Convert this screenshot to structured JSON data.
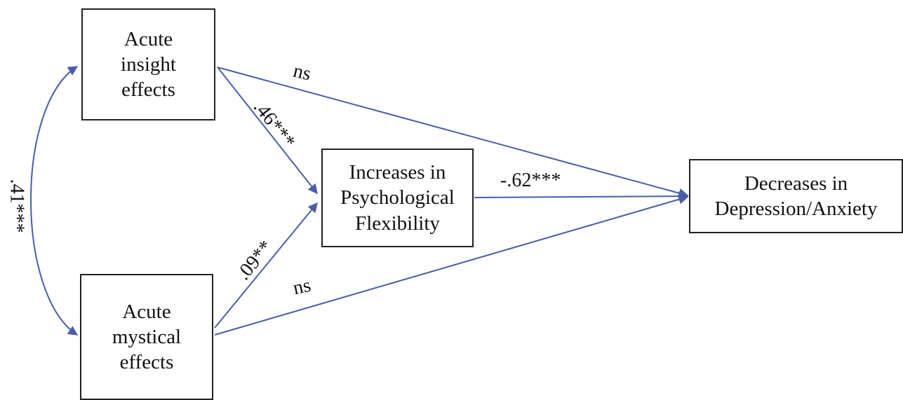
{
  "nodes": {
    "insight": {
      "lines": [
        "Acute",
        "insight",
        "effects"
      ]
    },
    "mystical": {
      "lines": [
        "Acute",
        "mystical",
        "effects"
      ]
    },
    "flexibility": {
      "lines": [
        "Increases in",
        "Psychological",
        "Flexibility"
      ]
    },
    "outcome": {
      "lines": [
        "Decreases in",
        "Depression/Anxiety"
      ]
    }
  },
  "paths": {
    "correlation": ".41***",
    "insight_to_flexibility": ".46***",
    "mystical_to_flexibility": ".09**",
    "flexibility_to_outcome": "-.62***",
    "insight_to_outcome": "ns",
    "mystical_to_outcome": "ns"
  },
  "colors": {
    "arrow": "#4a5ea8",
    "border": "#222222",
    "text": "#111111"
  }
}
